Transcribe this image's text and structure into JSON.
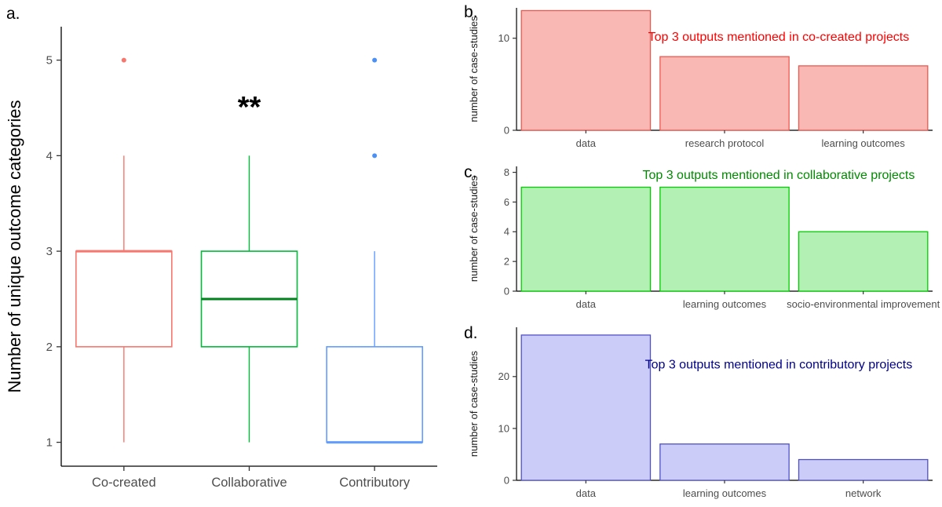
{
  "figure": {
    "background": "#FFFFFF",
    "panels": [
      {
        "id": "a",
        "letter": "a."
      },
      {
        "id": "b",
        "letter": "b."
      },
      {
        "id": "c",
        "letter": "c."
      },
      {
        "id": "d",
        "letter": "d."
      }
    ]
  },
  "chart_data": [
    {
      "id": "a",
      "type": "boxplot",
      "title": "",
      "ylabel": "Number of unique outcome categories",
      "xlabel": "",
      "ylim": [
        0.75,
        5.35
      ],
      "yticks": [
        1,
        2,
        3,
        4,
        5
      ],
      "grid": false,
      "legend": "none",
      "categories": [
        "Co-created",
        "Collaborative",
        "Contributory"
      ],
      "series": [
        {
          "name": "Co-created",
          "color": "#F8766D",
          "median_color": "#F8766D",
          "whisker_low": 1,
          "q1": 2,
          "median": 3,
          "q3": 3,
          "whisker_high": 4,
          "outliers": [
            5
          ],
          "outlier_color": "#F8766D"
        },
        {
          "name": "Collaborative",
          "color": "#00BA38",
          "median_color": "#00821F",
          "whisker_low": 1,
          "q1": 2,
          "median": 2.5,
          "q3": 3,
          "whisker_high": 4,
          "outliers": [],
          "outlier_color": "#00BA38"
        },
        {
          "name": "Contributory",
          "color": "#619CFF",
          "median_color": "#619CFF",
          "whisker_low": 1,
          "q1": 1,
          "median": 1,
          "q3": 2,
          "whisker_high": 3,
          "outliers": [
            4,
            5
          ],
          "outlier_color": "#4A90F5"
        }
      ],
      "annotation": {
        "text": "**",
        "category": "Collaborative",
        "y": 4.5
      }
    },
    {
      "id": "b",
      "type": "bar",
      "title": "Top 3 outputs mentioned in co-created projects",
      "title_color": "#FF0000",
      "ylabel": "number of case-studies",
      "xlabel": "",
      "categories": [
        "data",
        "research protocol",
        "learning outcomes"
      ],
      "values": [
        13,
        8,
        7
      ],
      "yticks": [
        0,
        10
      ],
      "ylim": [
        0,
        13.3
      ],
      "grid": false,
      "legend": "none",
      "bar_fill": "#FAB8B4",
      "bar_stroke": "#ED584F"
    },
    {
      "id": "c",
      "type": "bar",
      "title": "Top 3 outputs mentioned in collaborative projects",
      "title_color": "#008B00",
      "ylabel": "number of case-studies",
      "xlabel": "",
      "categories": [
        "data",
        "learning outcomes",
        "socio-environmental improvement"
      ],
      "values": [
        7,
        7,
        4
      ],
      "yticks": [
        0,
        2,
        4,
        6,
        8
      ],
      "ylim": [
        0,
        8.4
      ],
      "grid": false,
      "legend": "none",
      "bar_fill": "#B3F0B3",
      "bar_stroke": "#00CD00"
    },
    {
      "id": "d",
      "type": "bar",
      "title": "Top 3 outputs mentioned in contributory projects",
      "title_color": "#00008B",
      "ylabel": "number of case-studies",
      "xlabel": "",
      "categories": [
        "data",
        "learning outcomes",
        "network"
      ],
      "values": [
        28,
        7,
        4
      ],
      "yticks": [
        0,
        10,
        20
      ],
      "ylim": [
        0,
        29.5
      ],
      "grid": false,
      "legend": "none",
      "bar_fill": "#CCCCF8",
      "bar_stroke": "#5050C8"
    }
  ]
}
